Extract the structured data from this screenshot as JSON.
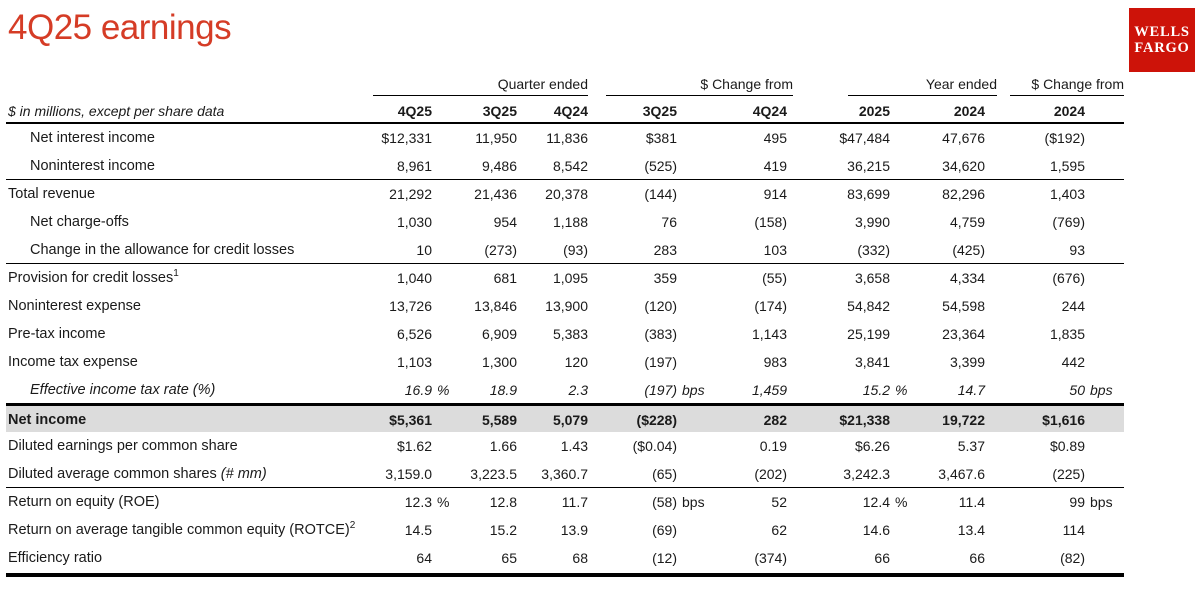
{
  "page": {
    "title": "4Q25 earnings",
    "title_color": "#d53c26"
  },
  "logo": {
    "line1": "WELLS",
    "line2": "FARGO",
    "bg_color": "#cd1309"
  },
  "table": {
    "note": "$ in millions, except per share data",
    "groups": [
      {
        "label": "Quarter ended"
      },
      {
        "label": "$ Change from"
      },
      {
        "label": "Year ended"
      },
      {
        "label": "$ Change from"
      }
    ],
    "columns": [
      "4Q25",
      "3Q25",
      "4Q24",
      "3Q25",
      "4Q24",
      "2025",
      "2024",
      "2024"
    ],
    "rows": [
      {
        "label": "Net interest income",
        "indent": true,
        "values": [
          "$12,331",
          "11,950",
          "11,836",
          "$381",
          "495",
          "$47,484",
          "47,676",
          "($192)"
        ]
      },
      {
        "label": "Noninterest income",
        "indent": true,
        "line_below": true,
        "values": [
          "8,961",
          "9,486",
          "8,542",
          "(525)",
          "419",
          "36,215",
          "34,620",
          "1,595"
        ]
      },
      {
        "label": "Total revenue",
        "values": [
          "21,292",
          "21,436",
          "20,378",
          "(144)",
          "914",
          "83,699",
          "82,296",
          "1,403"
        ]
      },
      {
        "label": "Net charge-offs",
        "indent": true,
        "values": [
          "1,030",
          "954",
          "1,188",
          "76",
          "(158)",
          "3,990",
          "4,759",
          "(769)"
        ]
      },
      {
        "label": "Change in the allowance for credit losses",
        "indent": true,
        "line_below": true,
        "values": [
          "10",
          "(273)",
          "(93)",
          "283",
          "103",
          "(332)",
          "(425)",
          "93"
        ]
      },
      {
        "label": "Provision for credit losses",
        "sup": "1",
        "values": [
          "1,040",
          "681",
          "1,095",
          "359",
          "(55)",
          "3,658",
          "4,334",
          "(676)"
        ]
      },
      {
        "label": "Noninterest expense",
        "values": [
          "13,726",
          "13,846",
          "13,900",
          "(120)",
          "(174)",
          "54,842",
          "54,598",
          "244"
        ]
      },
      {
        "label": "Pre-tax income",
        "values": [
          "6,526",
          "6,909",
          "5,383",
          "(383)",
          "1,143",
          "25,199",
          "23,364",
          "1,835"
        ]
      },
      {
        "label": "Income tax expense",
        "values": [
          "1,103",
          "1,300",
          "120",
          "(197)",
          "983",
          "3,841",
          "3,399",
          "442"
        ]
      },
      {
        "label": "Effective income tax rate (%)",
        "indent": true,
        "italic": true,
        "line_below": true,
        "values": [
          "16.9",
          "18.9",
          "2.3",
          "(197)",
          "1,459",
          "15.2",
          "14.7",
          "50"
        ],
        "units": {
          "0": "%",
          "3": "bps",
          "5": "%",
          "7": "bps"
        }
      },
      {
        "label": "Net income",
        "bold": true,
        "highlight": true,
        "values": [
          "$5,361",
          "5,589",
          "5,079",
          "($228)",
          "282",
          "$21,338",
          "19,722",
          "$1,616"
        ]
      },
      {
        "label": "Diluted earnings per common share",
        "values": [
          "$1.62",
          "1.66",
          "1.43",
          "($0.04)",
          "0.19",
          "$6.26",
          "5.37",
          "$0.89"
        ]
      },
      {
        "label": "Diluted average common shares",
        "suffix_italic": "(# mm)",
        "line_below": true,
        "values": [
          "3,159.0",
          "3,223.5",
          "3,360.7",
          "(65)",
          "(202)",
          "3,242.3",
          "3,467.6",
          "(225)"
        ]
      },
      {
        "label": "Return on equity (ROE)",
        "values": [
          "12.3",
          "12.8",
          "11.7",
          "(58)",
          "52",
          "12.4",
          "11.4",
          "99"
        ],
        "units": {
          "0": "%",
          "3": "bps",
          "5": "%",
          "7": "bps"
        }
      },
      {
        "label": "Return on average tangible common equity (ROTCE)",
        "sup": "2",
        "values": [
          "14.5",
          "15.2",
          "13.9",
          "(69)",
          "62",
          "14.6",
          "13.4",
          "114"
        ]
      },
      {
        "label": "Efficiency ratio",
        "values": [
          "64",
          "65",
          "68",
          "(12)",
          "(374)",
          "66",
          "66",
          "(82)"
        ]
      }
    ]
  }
}
